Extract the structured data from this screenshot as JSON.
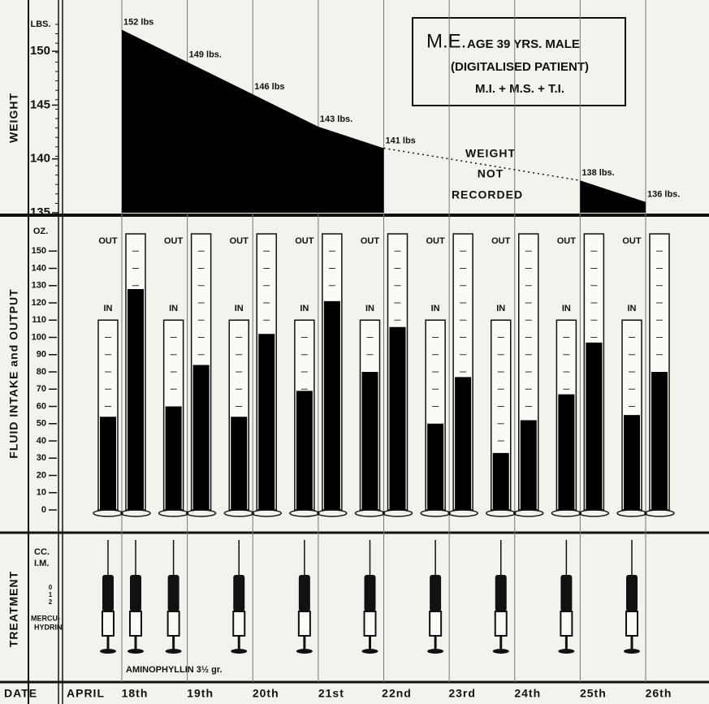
{
  "chart_data": [
    {
      "type": "area",
      "y_label": "WEIGHT",
      "y_unit": "LBS.",
      "values": [
        152,
        149,
        146,
        143,
        141,
        null,
        null,
        138,
        136
      ],
      "value_labels": [
        "152 lbs",
        "149 lbs.",
        "146 lbs",
        "143 lbs.",
        "141 lbs",
        null,
        null,
        "138 lbs.",
        "136 lbs."
      ],
      "color": "#000000",
      "ylim": [
        135,
        152.5
      ],
      "yticks": [
        135,
        140,
        145,
        150
      ],
      "annotations": [
        "M.E.",
        "AGE 39 YRS. MALE",
        "(DIGITALISED PATIENT)",
        "M.I. + M.S. + T.I.",
        "WEIGHT",
        "NOT",
        "RECORDED"
      ]
    },
    {
      "type": "cylinder",
      "y_label": "FLUID INTAKE and OUTPUT",
      "y_unit": "OZ.",
      "categories": [
        "18th",
        "19th",
        "20th",
        "21st",
        "22nd",
        "23rd",
        "24th",
        "25th",
        "26th"
      ],
      "series": [
        {
          "name": "IN",
          "color": "#000000",
          "capacity": 110,
          "values": [
            54,
            60,
            54,
            69,
            80,
            50,
            33,
            67,
            55
          ]
        },
        {
          "name": "OUT",
          "color": "#000000",
          "capacity": 160,
          "values": [
            128,
            84,
            102,
            121,
            106,
            77,
            52,
            97,
            80
          ]
        }
      ],
      "ylim": [
        0,
        160
      ],
      "yticks": [
        0,
        10,
        20,
        30,
        40,
        50,
        60,
        70,
        80,
        90,
        100,
        110,
        120,
        130,
        140,
        150
      ]
    }
  ],
  "treatment": {
    "label": "TREATMENT",
    "unit": "CC.",
    "route": "I.M.",
    "scale": [
      "0",
      "1",
      "2"
    ],
    "drug_lines": [
      "MERCU-",
      "HYDRIN"
    ],
    "note": "AMINOPHYLLIN 3½ gr."
  },
  "date_row": {
    "label": "DATE",
    "month": "APRIL"
  }
}
